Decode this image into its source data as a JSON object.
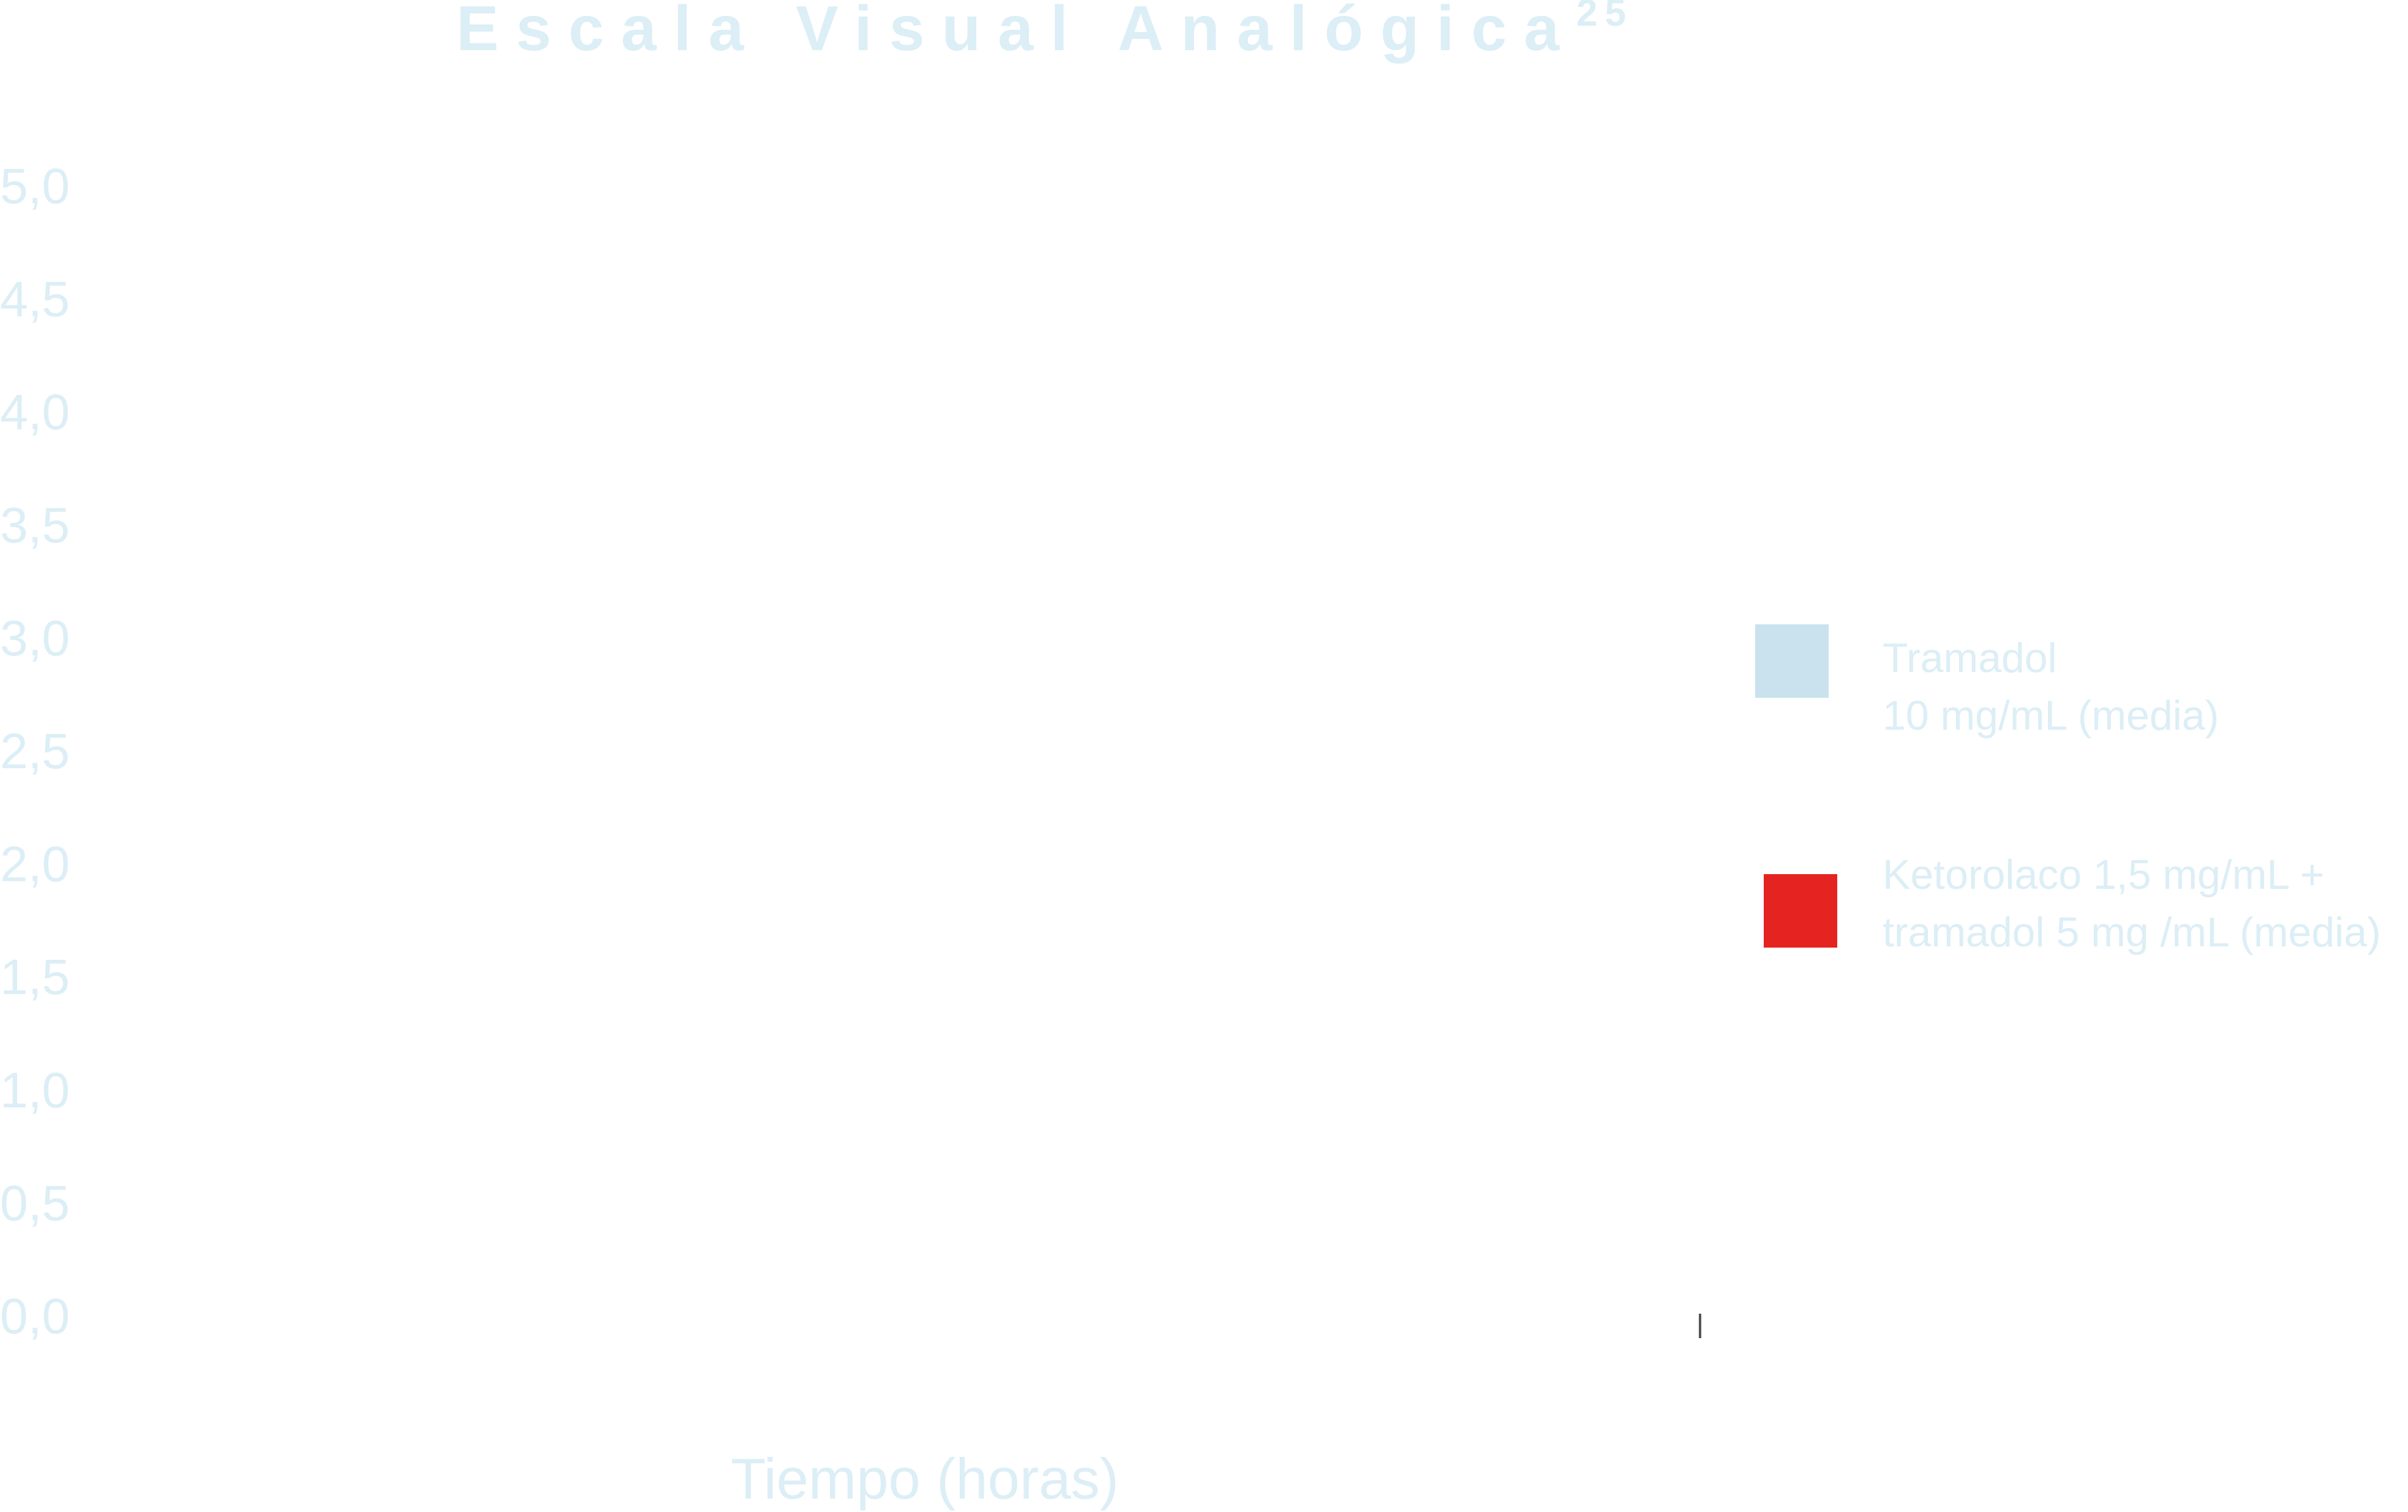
{
  "chart_data": {
    "type": "bar",
    "title": "Escala Visual Analógica",
    "title_superscript": "25",
    "xlabel": "Tiempo (horas)",
    "ylabel": "",
    "ylim": [
      0,
      5
    ],
    "ytick_labels": [
      "0,0",
      "0,5",
      "1,0",
      "1,5",
      "2,0",
      "2,5",
      "3,0",
      "3,5",
      "4,0",
      "4,5",
      "5,0"
    ],
    "categories": [],
    "series": [
      {
        "name": "Tramadol 10 mg/mL (media)",
        "legend_lines": [
          "Tramadol",
          "10 mg/mL (media)"
        ],
        "color": "#c9e2ee",
        "values": []
      },
      {
        "name": "Ketorolaco 1,5 mg/mL + tramadol 5 mg /mL (media)",
        "legend_lines": [
          "Ketorolaco 1,5 mg/mL +",
          "tramadol 5 mg /mL (media)"
        ],
        "color": "#e52320",
        "values": []
      }
    ],
    "grid": false,
    "legend_position": "right",
    "text_color": "#dceef6"
  }
}
